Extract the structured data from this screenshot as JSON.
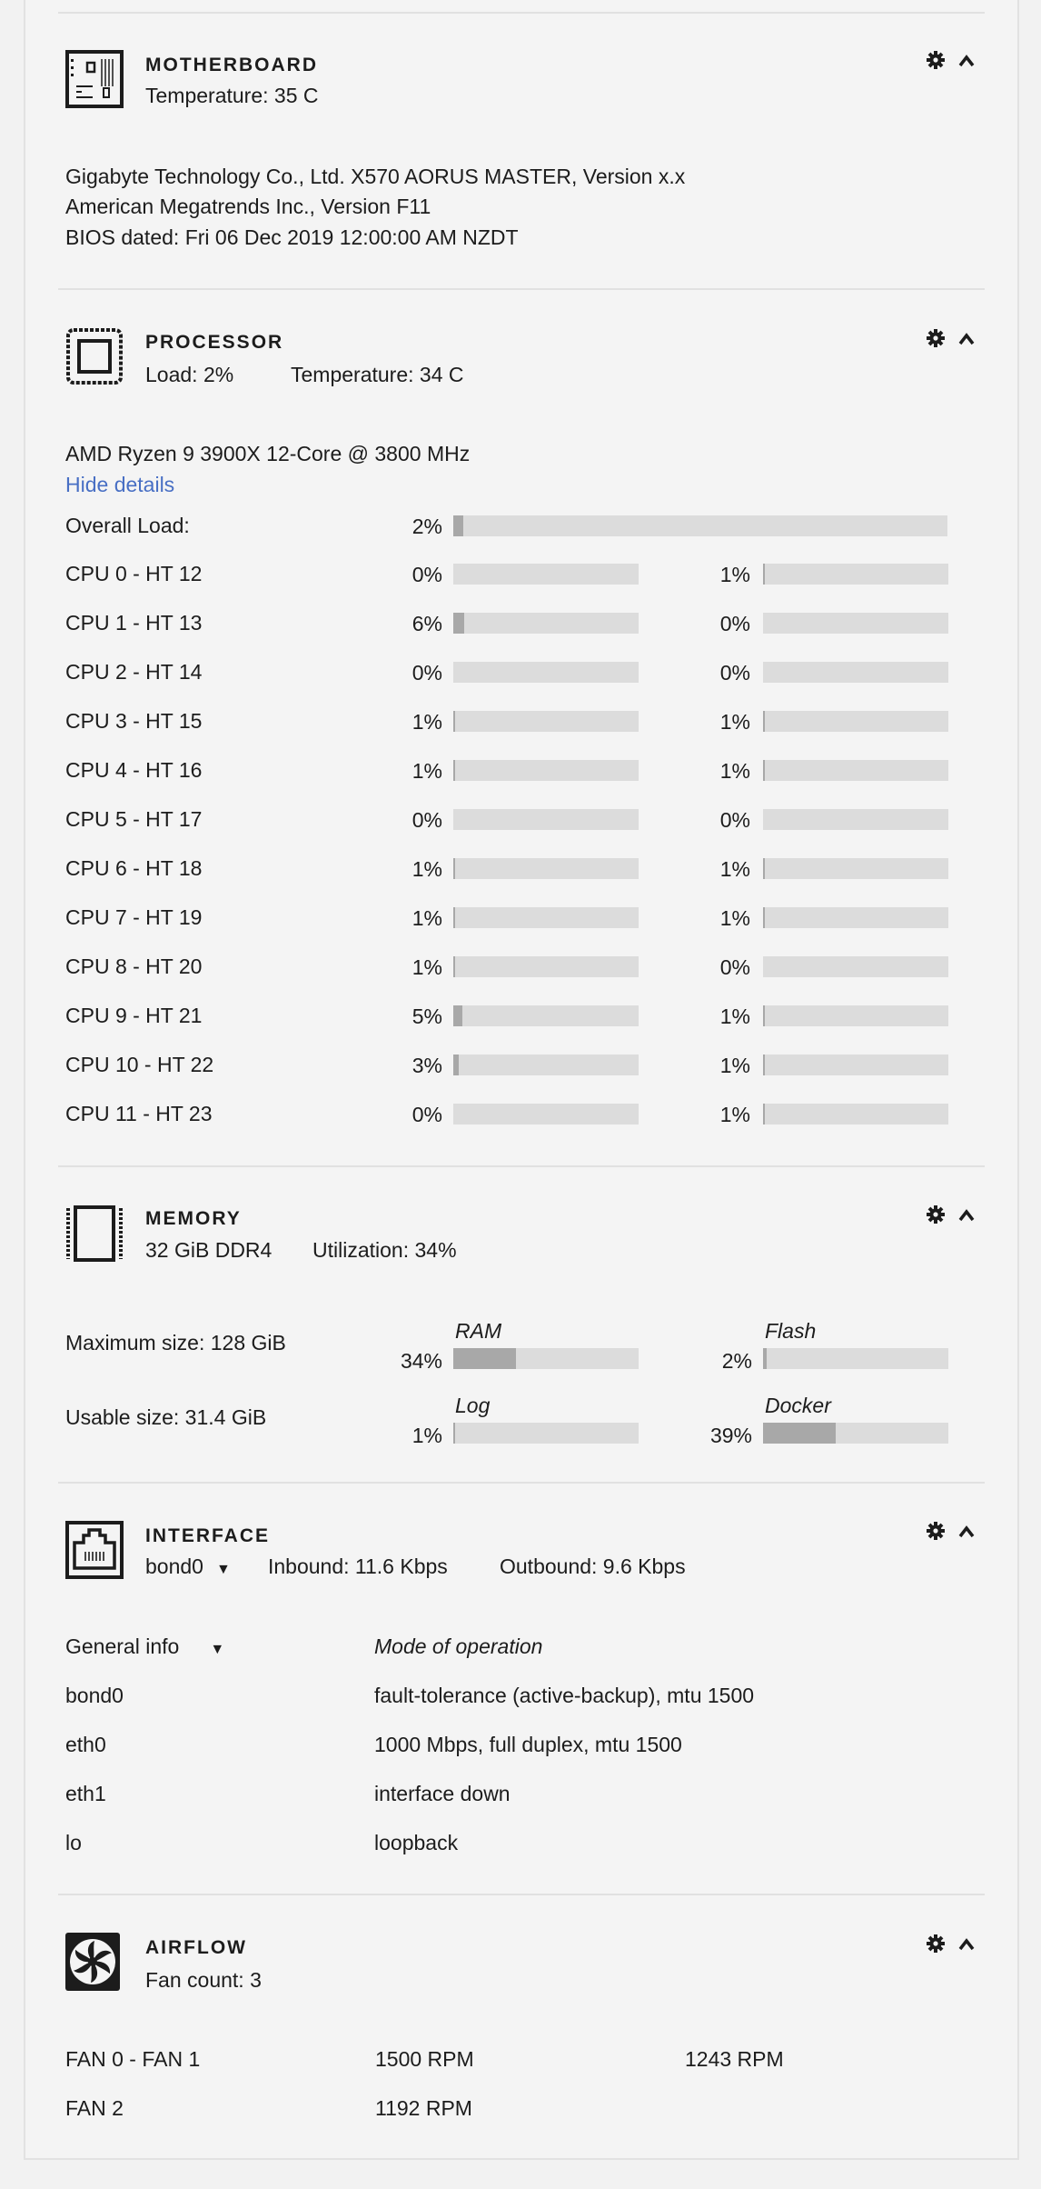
{
  "motherboard": {
    "title": "MOTHERBOARD",
    "temperature": "Temperature: 35 C",
    "lines": [
      "Gigabyte Technology Co., Ltd. X570 AORUS MASTER, Version x.x",
      "American Megatrends Inc., Version F11",
      "BIOS dated: Fri 06 Dec 2019 12:00:00 AM NZDT"
    ]
  },
  "processor": {
    "title": "PROCESSOR",
    "load": "Load: 2%",
    "temperature": "Temperature: 34 C",
    "model": "AMD Ryzen 9 3900X 12-Core @ 3800 MHz",
    "hide_details": "Hide details",
    "overall_label": "Overall Load:",
    "overall_pct": 2,
    "cpus": [
      {
        "label": "CPU 0 - HT 12",
        "a": 0,
        "b": 1
      },
      {
        "label": "CPU 1 - HT 13",
        "a": 6,
        "b": 0
      },
      {
        "label": "CPU 2 - HT 14",
        "a": 0,
        "b": 0
      },
      {
        "label": "CPU 3 - HT 15",
        "a": 1,
        "b": 1
      },
      {
        "label": "CPU 4 - HT 16",
        "a": 1,
        "b": 1
      },
      {
        "label": "CPU 5 - HT 17",
        "a": 0,
        "b": 0
      },
      {
        "label": "CPU 6 - HT 18",
        "a": 1,
        "b": 1
      },
      {
        "label": "CPU 7 - HT 19",
        "a": 1,
        "b": 1
      },
      {
        "label": "CPU 8 - HT 20",
        "a": 1,
        "b": 0
      },
      {
        "label": "CPU 9 - HT 21",
        "a": 5,
        "b": 1
      },
      {
        "label": "CPU 10 - HT 22",
        "a": 3,
        "b": 1
      },
      {
        "label": "CPU 11 - HT 23",
        "a": 0,
        "b": 1
      }
    ]
  },
  "memory": {
    "title": "MEMORY",
    "size": "32 GiB DDR4",
    "utilization": "Utilization: 34%",
    "max_size": "Maximum size: 128 GiB",
    "usable_size": "Usable size: 31.4 GiB",
    "bars": [
      {
        "label": "RAM",
        "pct": 34
      },
      {
        "label": "Flash",
        "pct": 2
      },
      {
        "label": "Log",
        "pct": 1
      },
      {
        "label": "Docker",
        "pct": 39
      }
    ]
  },
  "interface": {
    "title": "INTERFACE",
    "selected": "bond0",
    "inbound": "Inbound: 11.6 Kbps",
    "outbound": "Outbound: 9.6 Kbps",
    "info_select": "General info",
    "col_header": "Mode of operation",
    "rows": [
      {
        "name": "bond0",
        "mode": "fault-tolerance (active-backup), mtu 1500"
      },
      {
        "name": "eth0",
        "mode": "1000 Mbps, full duplex, mtu 1500"
      },
      {
        "name": "eth1",
        "mode": "interface down"
      },
      {
        "name": "lo",
        "mode": "loopback"
      }
    ]
  },
  "airflow": {
    "title": "AIRFLOW",
    "fan_count": "Fan count: 3",
    "rows": [
      {
        "label": "FAN 0 - FAN 1",
        "a": "1500 RPM",
        "b": "1243 RPM"
      },
      {
        "label": "FAN 2",
        "a": "1192 RPM",
        "b": ""
      }
    ]
  },
  "colors": {
    "bar_track": "#dcdcdc",
    "bar_fill": "#a8a8a8",
    "link": "#486fc4"
  }
}
